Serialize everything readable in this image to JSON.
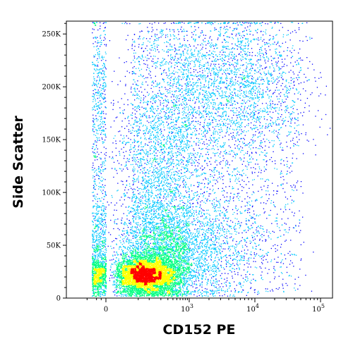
{
  "chart_data": {
    "type": "scatter",
    "subtype": "flow-cytometry-density-dot-plot",
    "title": "",
    "xlabel": "CD152 PE",
    "ylabel": "Side Scatter",
    "x_scale": "biexponential",
    "y_scale": "linear",
    "ylim": [
      0,
      262144
    ],
    "x_ticks": [
      {
        "value": 0,
        "label": "0"
      },
      {
        "value": 1000,
        "label": "10",
        "exp": "3"
      },
      {
        "value": 10000,
        "label": "10",
        "exp": "4"
      },
      {
        "value": 100000,
        "label": "10",
        "exp": "5"
      }
    ],
    "y_ticks": [
      {
        "value": 0,
        "label": "0"
      },
      {
        "value": 50000,
        "label": "50K"
      },
      {
        "value": 100000,
        "label": "100K"
      },
      {
        "value": 150000,
        "label": "150K"
      },
      {
        "value": 200000,
        "label": "200K"
      },
      {
        "value": 250000,
        "label": "250K"
      }
    ],
    "density_colors": [
      "#0000ff",
      "#00c8ff",
      "#00ff80",
      "#ffff00",
      "#ff0000"
    ],
    "populations": [
      {
        "name": "main-low-ssc",
        "x_center": 80,
        "ssc_center": 22000,
        "x_spread": 0.22,
        "ssc_spread": 9000,
        "density": "high"
      },
      {
        "name": "low-ssc-tail",
        "x_center": 400,
        "ssc_center": 45000,
        "x_spread": 0.35,
        "ssc_spread": 25000,
        "density": "medium"
      },
      {
        "name": "mid-ssc-column",
        "x_center": 200,
        "ssc_center": 110000,
        "x_spread": 0.35,
        "ssc_spread": 60000,
        "density": "low"
      },
      {
        "name": "high-ssc-positive",
        "x_center": 4000,
        "ssc_center": 200000,
        "x_spread": 0.3,
        "ssc_spread": 40000,
        "density": "low"
      }
    ],
    "grid": false,
    "legend": "none"
  }
}
